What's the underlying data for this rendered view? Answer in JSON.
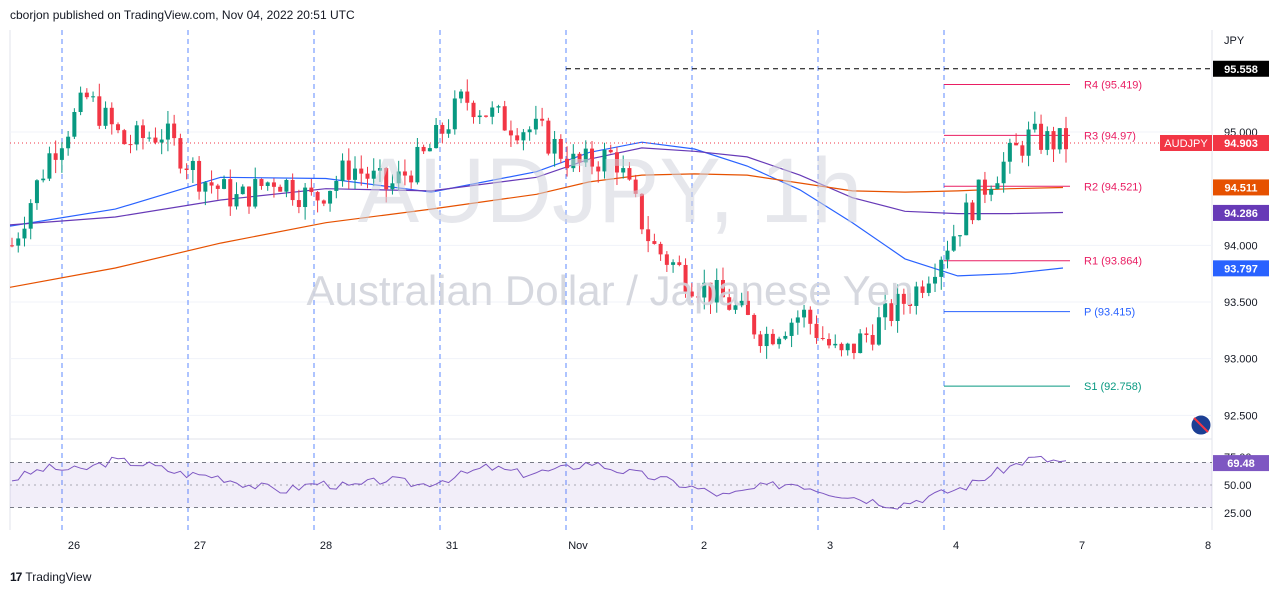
{
  "header": {
    "publisher": "cborjon published on TradingView.com, Nov 04, 2022 20:51 UTC"
  },
  "footer": {
    "brand": "TradingView",
    "logo": "17"
  },
  "watermark": {
    "symbol": "AUDJPY, 1h",
    "name": "Australian Dollar / Japanese Yen"
  },
  "chart_data": {
    "type": "candlestick",
    "symbol": "AUDJPY",
    "interval": "1h",
    "currency_label": "JPY",
    "y_ticks": [
      "95.000",
      "94.000",
      "93.500",
      "93.000",
      "92.500"
    ],
    "ylim": [
      92.3,
      95.9
    ],
    "x_ticks": [
      "26",
      "27",
      "28",
      "31",
      "Nov",
      "2",
      "3",
      "4",
      "7",
      "8"
    ],
    "last_price": "94.903",
    "price_tags": [
      {
        "label": "95.558",
        "value": 95.558,
        "color": "#000000"
      },
      {
        "label": "94.903",
        "value": 94.903,
        "color": "#f23645",
        "name": "AUDJPY"
      },
      {
        "label": "94.511",
        "value": 94.511,
        "color": "#e65100"
      },
      {
        "label": "94.286",
        "value": 94.286,
        "color": "#673ab7"
      },
      {
        "label": "93.797",
        "value": 93.797,
        "color": "#2962ff"
      }
    ],
    "pivots": [
      {
        "label": "R4 (95.419)",
        "value": 95.419,
        "color": "#e91e63"
      },
      {
        "label": "R3 (94.97)",
        "value": 94.97,
        "color": "#e91e63"
      },
      {
        "label": "R2 (94.521)",
        "value": 94.521,
        "color": "#e91e63"
      },
      {
        "label": "R1 (93.864)",
        "value": 93.864,
        "color": "#e91e63"
      },
      {
        "label": "P (93.415)",
        "value": 93.415,
        "color": "#2962ff"
      },
      {
        "label": "S1 (92.758)",
        "value": 92.758,
        "color": "#089981"
      }
    ],
    "moving_averages": [
      {
        "color": "#2962ff",
        "x": [
          0,
          10,
          20,
          30,
          40,
          50,
          55,
          60,
          65,
          70,
          75,
          80,
          85,
          90,
          95,
          100
        ],
        "y": [
          94.17,
          94.32,
          94.6,
          94.59,
          94.47,
          94.65,
          94.82,
          94.91,
          94.85,
          94.7,
          94.49,
          94.2,
          93.88,
          93.73,
          93.75,
          93.8
        ]
      },
      {
        "color": "#673ab7",
        "x": [
          0,
          10,
          20,
          30,
          40,
          50,
          55,
          60,
          65,
          70,
          75,
          80,
          85,
          90,
          95,
          100
        ],
        "y": [
          94.18,
          94.25,
          94.4,
          94.5,
          94.48,
          94.6,
          94.76,
          94.86,
          94.83,
          94.78,
          94.62,
          94.42,
          94.3,
          94.28,
          94.28,
          94.29
        ]
      },
      {
        "color": "#e65100",
        "x": [
          0,
          10,
          20,
          30,
          40,
          50,
          55,
          60,
          65,
          70,
          75,
          80,
          85,
          90,
          95,
          100
        ],
        "y": [
          93.63,
          93.8,
          94.02,
          94.2,
          94.32,
          94.45,
          94.56,
          94.62,
          94.63,
          94.62,
          94.55,
          94.48,
          94.47,
          94.48,
          94.5,
          94.51
        ]
      }
    ],
    "price_path": [
      94.0,
      94.8,
      95.3,
      94.9,
      95.0,
      94.6,
      94.4,
      94.6,
      94.4,
      94.7,
      94.5,
      94.8,
      95.3,
      95.1,
      95.0,
      94.7,
      94.8,
      94.0,
      93.7,
      93.5,
      93.2,
      93.4,
      93.0,
      93.3,
      93.6,
      94.1,
      94.6,
      94.95,
      94.9
    ],
    "rsi": {
      "value_label": "69.48",
      "y_ticks": [
        "75.00",
        "50.00",
        "25.00"
      ],
      "bands": [
        30,
        70
      ],
      "values": [
        55,
        65,
        63,
        72,
        68,
        60,
        58,
        50,
        45,
        52,
        48,
        55,
        50,
        57,
        66,
        60,
        63,
        70,
        62,
        56,
        48,
        40,
        48,
        52,
        44,
        38,
        32,
        40,
        48,
        62,
        74,
        70
      ]
    }
  }
}
